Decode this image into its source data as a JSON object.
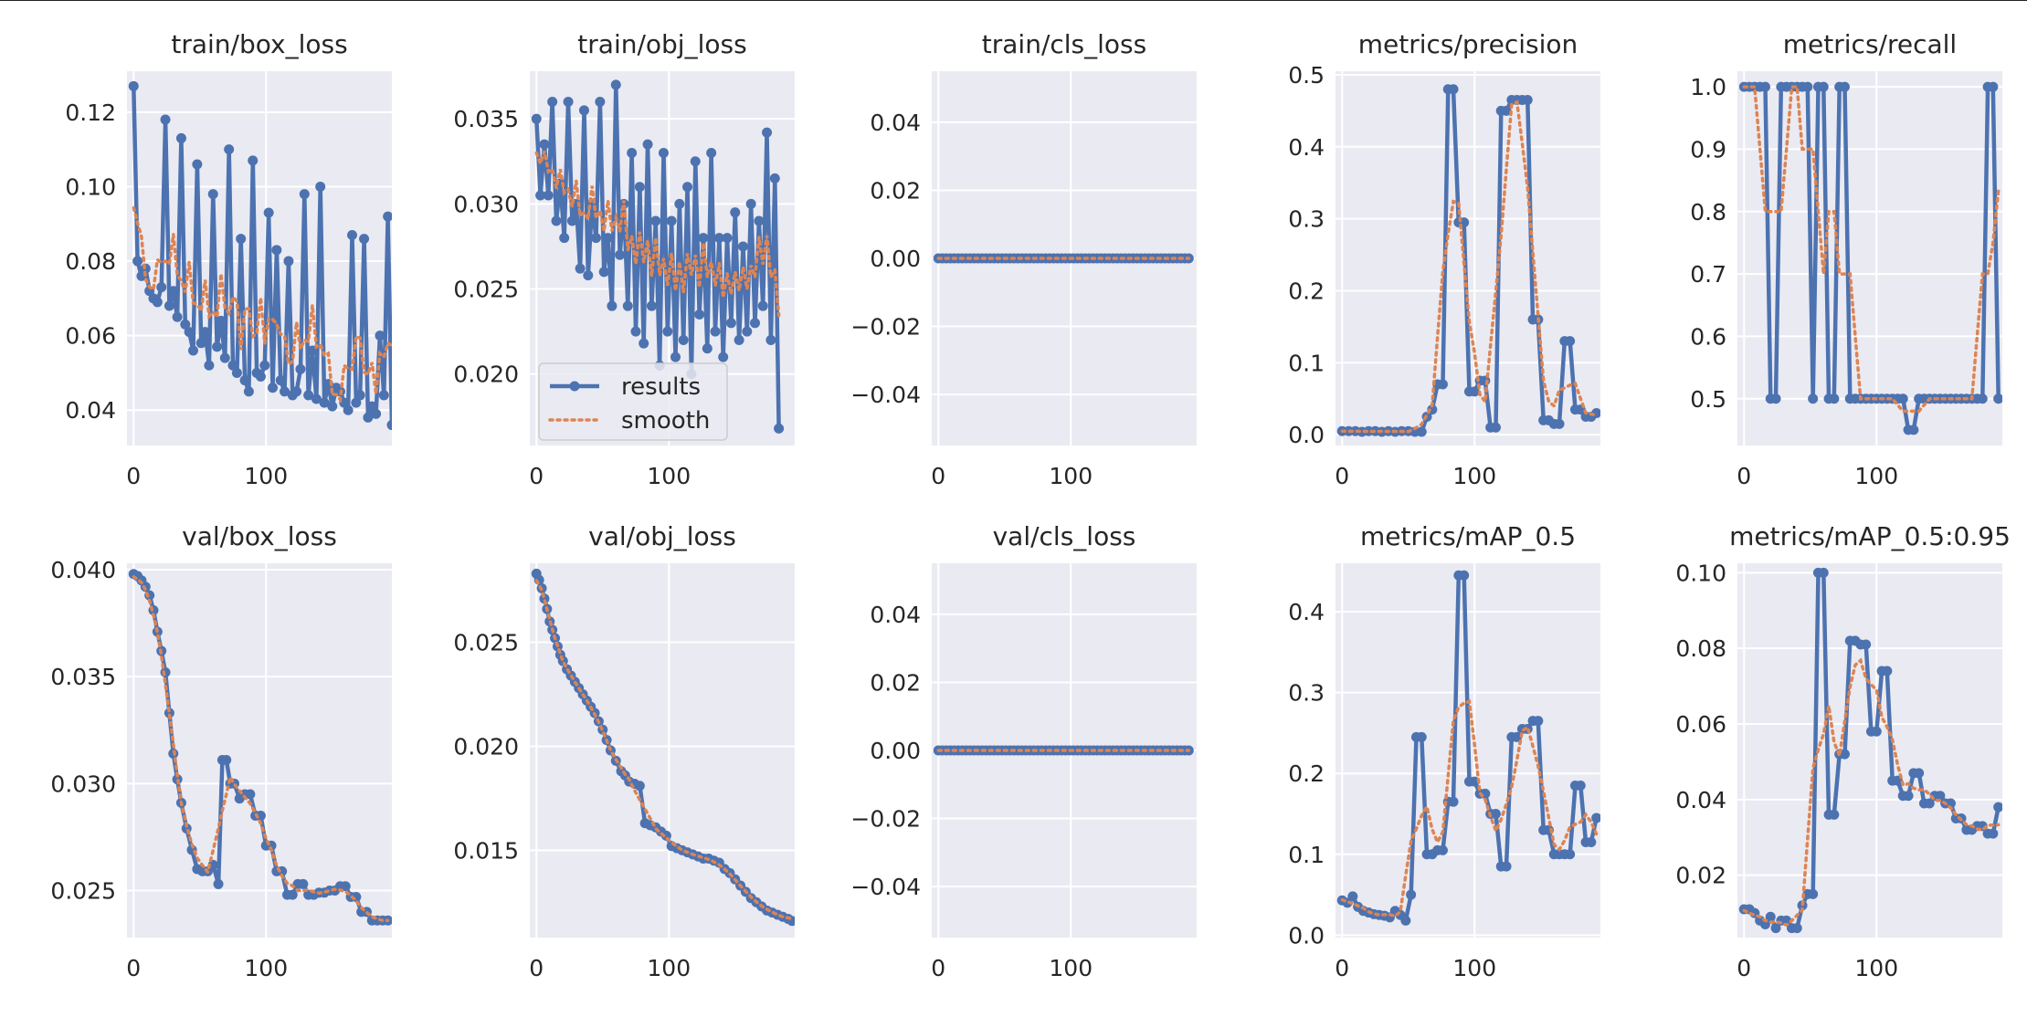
{
  "figure": {
    "legend": {
      "results_label": "results",
      "smooth_label": "smooth",
      "placement": "lower-right of train/obj_loss"
    }
  },
  "colors": {
    "background": "#eaeaf2",
    "grid": "#ffffff",
    "results": "#4c72b0",
    "smooth": "#dd8452",
    "text": "#262626"
  },
  "chart_data": [
    {
      "type": "line",
      "title": "train/box_loss",
      "xlim": [
        -5,
        195
      ],
      "ylim": [
        0.0305,
        0.131
      ],
      "xticks": [
        0,
        100
      ],
      "yticks": [
        0.04,
        0.06,
        0.08,
        0.1,
        0.12
      ],
      "ytick_labels": [
        "0.04",
        "0.06",
        "0.08",
        "0.10",
        "0.12"
      ],
      "legend": false,
      "series": [
        {
          "name": "results",
          "x_start": 0,
          "x_step": 3,
          "values": [
            0.127,
            0.08,
            0.076,
            0.078,
            0.072,
            0.07,
            0.069,
            0.073,
            0.118,
            0.068,
            0.072,
            0.065,
            0.113,
            0.063,
            0.061,
            0.056,
            0.106,
            0.058,
            0.061,
            0.052,
            0.098,
            0.057,
            0.064,
            0.054,
            0.11,
            0.052,
            0.05,
            0.086,
            0.048,
            0.045,
            0.107,
            0.05,
            0.049,
            0.052,
            0.093,
            0.046,
            0.083,
            0.048,
            0.045,
            0.08,
            0.044,
            0.045,
            0.051,
            0.098,
            0.044,
            0.056,
            0.043,
            0.1,
            0.042,
            0.047,
            0.041,
            0.046,
            0.045,
            0.042,
            0.04,
            0.087,
            0.042,
            0.044,
            0.086,
            0.038,
            0.041,
            0.039,
            0.06,
            0.044,
            0.092,
            0.036
          ]
        }
      ]
    },
    {
      "type": "line",
      "title": "train/obj_loss",
      "xlim": [
        -5,
        195
      ],
      "ylim": [
        0.0158,
        0.0378
      ],
      "xticks": [
        0,
        100
      ],
      "yticks": [
        0.02,
        0.025,
        0.03,
        0.035
      ],
      "ytick_labels": [
        "0.020",
        "0.025",
        "0.030",
        "0.035"
      ],
      "legend": true,
      "series": [
        {
          "name": "results",
          "x_start": 0,
          "x_step": 3,
          "values": [
            0.035,
            0.0305,
            0.0335,
            0.0305,
            0.036,
            0.029,
            0.0312,
            0.028,
            0.036,
            0.029,
            0.03,
            0.0262,
            0.0355,
            0.0258,
            0.03,
            0.028,
            0.036,
            0.026,
            0.028,
            0.024,
            0.037,
            0.027,
            0.03,
            0.024,
            0.033,
            0.0225,
            0.031,
            0.0218,
            0.0335,
            0.024,
            0.029,
            0.0205,
            0.033,
            0.0225,
            0.029,
            0.021,
            0.03,
            0.022,
            0.031,
            0.02,
            0.0325,
            0.0235,
            0.028,
            0.0215,
            0.033,
            0.0225,
            0.028,
            0.021,
            0.028,
            0.023,
            0.0295,
            0.022,
            0.0275,
            0.0225,
            0.03,
            0.023,
            0.029,
            0.024,
            0.0342,
            0.022,
            0.0315,
            0.0168
          ]
        }
      ]
    },
    {
      "type": "line",
      "title": "train/cls_loss",
      "xlim": [
        -5,
        195
      ],
      "ylim": [
        -0.055,
        0.055
      ],
      "xticks": [
        0,
        100
      ],
      "yticks": [
        -0.04,
        -0.02,
        0.0,
        0.02,
        0.04
      ],
      "ytick_labels": [
        "−0.04",
        "−0.02",
        "0.00",
        "0.02",
        "0.04"
      ],
      "legend": false,
      "series": [
        {
          "name": "results",
          "constant": 0.0,
          "count": 64,
          "x_start": 0,
          "x_step": 3
        }
      ]
    },
    {
      "type": "line",
      "title": "metrics/precision",
      "xlim": [
        -5,
        195
      ],
      "ylim": [
        -0.015,
        0.505
      ],
      "xticks": [
        0,
        100
      ],
      "yticks": [
        0.0,
        0.1,
        0.2,
        0.3,
        0.4,
        0.5
      ],
      "ytick_labels": [
        "0.0",
        "0.1",
        "0.2",
        "0.3",
        "0.4",
        "0.5"
      ],
      "legend": false,
      "series": [
        {
          "name": "results",
          "x": [
            0,
            5,
            10,
            15,
            20,
            25,
            30,
            35,
            40,
            45,
            50,
            55,
            60,
            64,
            68,
            72,
            76,
            80,
            84,
            88,
            92,
            96,
            100,
            104,
            108,
            112,
            116,
            120,
            124,
            128,
            132,
            136,
            140,
            144,
            148,
            152,
            156,
            160,
            164,
            168,
            172,
            176,
            180,
            184,
            188,
            192
          ],
          "values": [
            0.005,
            0.005,
            0.005,
            0.004,
            0.005,
            0.005,
            0.004,
            0.005,
            0.004,
            0.005,
            0.005,
            0.004,
            0.004,
            0.025,
            0.035,
            0.07,
            0.07,
            0.48,
            0.48,
            0.295,
            0.295,
            0.06,
            0.06,
            0.075,
            0.075,
            0.01,
            0.01,
            0.45,
            0.45,
            0.465,
            0.465,
            0.465,
            0.465,
            0.16,
            0.16,
            0.02,
            0.02,
            0.015,
            0.015,
            0.13,
            0.13,
            0.035,
            0.035,
            0.025,
            0.025,
            0.03
          ]
        }
      ]
    },
    {
      "type": "line",
      "title": "metrics/recall",
      "xlim": [
        -5,
        195
      ],
      "ylim": [
        0.425,
        1.025
      ],
      "xticks": [
        0,
        100
      ],
      "yticks": [
        0.5,
        0.6,
        0.7,
        0.8,
        0.9,
        1.0
      ],
      "ytick_labels": [
        "0.5",
        "0.6",
        "0.7",
        "0.8",
        "0.9",
        "1.0"
      ],
      "legend": false,
      "series": [
        {
          "name": "results",
          "x": [
            0,
            4,
            8,
            12,
            16,
            20,
            24,
            28,
            32,
            36,
            40,
            44,
            48,
            52,
            56,
            60,
            64,
            68,
            72,
            76,
            80,
            84,
            88,
            92,
            96,
            100,
            104,
            108,
            112,
            116,
            120,
            124,
            128,
            132,
            136,
            140,
            144,
            148,
            152,
            156,
            160,
            164,
            168,
            172,
            176,
            180,
            184,
            188,
            192
          ],
          "values": [
            1.0,
            1.0,
            1.0,
            1.0,
            1.0,
            0.5,
            0.5,
            1.0,
            1.0,
            1.0,
            1.0,
            1.0,
            1.0,
            0.5,
            1.0,
            1.0,
            0.5,
            0.5,
            1.0,
            1.0,
            0.5,
            0.5,
            0.5,
            0.5,
            0.5,
            0.5,
            0.5,
            0.5,
            0.5,
            0.5,
            0.5,
            0.45,
            0.45,
            0.5,
            0.5,
            0.5,
            0.5,
            0.5,
            0.5,
            0.5,
            0.5,
            0.5,
            0.5,
            0.5,
            0.5,
            0.5,
            1.0,
            1.0,
            0.5
          ]
        }
      ]
    },
    {
      "type": "line",
      "title": "val/box_loss",
      "xlim": [
        -5,
        195
      ],
      "ylim": [
        0.0228,
        0.0403
      ],
      "xticks": [
        0,
        100
      ],
      "yticks": [
        0.025,
        0.03,
        0.035,
        0.04
      ],
      "ytick_labels": [
        "0.025",
        "0.030",
        "0.035",
        "0.040"
      ],
      "legend": false,
      "series": [
        {
          "name": "results",
          "x": [
            0,
            3,
            6,
            9,
            12,
            15,
            18,
            21,
            24,
            27,
            30,
            33,
            36,
            40,
            44,
            48,
            52,
            56,
            60,
            64,
            67,
            70,
            73,
            76,
            80,
            84,
            88,
            92,
            96,
            100,
            104,
            108,
            112,
            116,
            120,
            124,
            128,
            132,
            136,
            140,
            144,
            148,
            152,
            156,
            160,
            164,
            168,
            172,
            176,
            180,
            184,
            188,
            192
          ],
          "values": [
            0.0398,
            0.0397,
            0.0395,
            0.0392,
            0.0388,
            0.0381,
            0.0371,
            0.0362,
            0.0352,
            0.0333,
            0.0314,
            0.0302,
            0.0291,
            0.0279,
            0.0269,
            0.026,
            0.0259,
            0.0259,
            0.0262,
            0.0253,
            0.0311,
            0.0311,
            0.03,
            0.03,
            0.0293,
            0.0295,
            0.0295,
            0.0285,
            0.0285,
            0.0271,
            0.0271,
            0.0259,
            0.0259,
            0.0248,
            0.0248,
            0.0253,
            0.0253,
            0.0248,
            0.0248,
            0.0249,
            0.0249,
            0.025,
            0.025,
            0.0252,
            0.0252,
            0.0247,
            0.0247,
            0.024,
            0.024,
            0.0236,
            0.0236,
            0.0236,
            0.0236
          ]
        }
      ]
    },
    {
      "type": "line",
      "title": "val/obj_loss",
      "xlim": [
        -5,
        195
      ],
      "ylim": [
        0.0108,
        0.0288
      ],
      "xticks": [
        0,
        100
      ],
      "yticks": [
        0.015,
        0.02,
        0.025
      ],
      "ytick_labels": [
        "0.015",
        "0.020",
        "0.025"
      ],
      "legend": false,
      "series": [
        {
          "name": "results",
          "x": [
            0,
            2,
            4,
            6,
            8,
            10,
            12,
            14,
            16,
            18,
            20,
            23,
            26,
            29,
            32,
            35,
            38,
            41,
            44,
            47,
            50,
            53,
            56,
            60,
            64,
            67,
            70,
            74,
            78,
            82,
            86,
            90,
            94,
            98,
            102,
            106,
            110,
            114,
            118,
            122,
            126,
            130,
            134,
            138,
            142,
            146,
            150,
            154,
            158,
            162,
            166,
            170,
            174,
            178,
            182,
            186,
            190,
            193
          ],
          "values": [
            0.0283,
            0.028,
            0.0276,
            0.0271,
            0.0266,
            0.026,
            0.0256,
            0.0252,
            0.0248,
            0.0244,
            0.0241,
            0.0237,
            0.0234,
            0.0231,
            0.0228,
            0.0225,
            0.0222,
            0.0219,
            0.0216,
            0.0212,
            0.0208,
            0.0203,
            0.0198,
            0.0193,
            0.0188,
            0.0186,
            0.0183,
            0.0182,
            0.0181,
            0.0163,
            0.0162,
            0.0161,
            0.0159,
            0.0157,
            0.0152,
            0.0151,
            0.015,
            0.0149,
            0.0148,
            0.0147,
            0.0146,
            0.0146,
            0.0145,
            0.0144,
            0.0141,
            0.0139,
            0.0136,
            0.0133,
            0.013,
            0.0127,
            0.0125,
            0.0123,
            0.0121,
            0.012,
            0.0119,
            0.0118,
            0.0117,
            0.0116
          ]
        }
      ]
    },
    {
      "type": "line",
      "title": "val/cls_loss",
      "xlim": [
        -5,
        195
      ],
      "ylim": [
        -0.055,
        0.055
      ],
      "xticks": [
        0,
        100
      ],
      "yticks": [
        -0.04,
        -0.02,
        0.0,
        0.02,
        0.04
      ],
      "ytick_labels": [
        "−0.04",
        "−0.02",
        "0.00",
        "0.02",
        "0.04"
      ],
      "legend": false,
      "series": [
        {
          "name": "results",
          "constant": 0.0,
          "count": 64,
          "x_start": 0,
          "x_step": 3
        }
      ]
    },
    {
      "type": "line",
      "title": "metrics/mAP_0.5",
      "xlim": [
        -5,
        195
      ],
      "ylim": [
        -0.003,
        0.46
      ],
      "xticks": [
        0,
        100
      ],
      "yticks": [
        0.0,
        0.1,
        0.2,
        0.3,
        0.4
      ],
      "ytick_labels": [
        "0.0",
        "0.1",
        "0.2",
        "0.3",
        "0.4"
      ],
      "legend": false,
      "series": [
        {
          "name": "results",
          "x": [
            0,
            4,
            8,
            12,
            16,
            20,
            24,
            28,
            32,
            36,
            40,
            44,
            48,
            52,
            56,
            60,
            64,
            68,
            72,
            76,
            80,
            84,
            88,
            92,
            96,
            100,
            104,
            108,
            112,
            116,
            120,
            124,
            128,
            132,
            136,
            140,
            144,
            148,
            152,
            156,
            160,
            164,
            168,
            172,
            176,
            180,
            184,
            188,
            192
          ],
          "values": [
            0.043,
            0.04,
            0.048,
            0.035,
            0.03,
            0.028,
            0.026,
            0.025,
            0.024,
            0.022,
            0.03,
            0.025,
            0.018,
            0.05,
            0.245,
            0.245,
            0.1,
            0.1,
            0.105,
            0.105,
            0.165,
            0.165,
            0.445,
            0.445,
            0.19,
            0.19,
            0.175,
            0.175,
            0.15,
            0.15,
            0.085,
            0.085,
            0.245,
            0.245,
            0.255,
            0.255,
            0.265,
            0.265,
            0.13,
            0.13,
            0.1,
            0.1,
            0.1,
            0.1,
            0.185,
            0.185,
            0.115,
            0.115,
            0.145
          ]
        }
      ]
    },
    {
      "type": "line",
      "title": "metrics/mAP_0.5:0.95",
      "xlim": [
        -5,
        195
      ],
      "ylim": [
        0.0035,
        0.1025
      ],
      "xticks": [
        0,
        100
      ],
      "yticks": [
        0.02,
        0.04,
        0.06,
        0.08,
        0.1
      ],
      "ytick_labels": [
        "0.02",
        "0.04",
        "0.06",
        "0.08",
        "0.10"
      ],
      "legend": false,
      "series": [
        {
          "name": "results",
          "x": [
            0,
            4,
            8,
            12,
            16,
            20,
            24,
            28,
            32,
            36,
            40,
            44,
            48,
            52,
            56,
            60,
            64,
            68,
            72,
            76,
            80,
            84,
            88,
            92,
            96,
            100,
            104,
            108,
            112,
            116,
            120,
            124,
            128,
            132,
            136,
            140,
            144,
            148,
            152,
            156,
            160,
            164,
            168,
            172,
            176,
            180,
            184,
            188,
            192
          ],
          "values": [
            0.011,
            0.011,
            0.01,
            0.008,
            0.007,
            0.009,
            0.006,
            0.008,
            0.008,
            0.006,
            0.006,
            0.012,
            0.015,
            0.015,
            0.1,
            0.1,
            0.036,
            0.036,
            0.052,
            0.052,
            0.082,
            0.082,
            0.081,
            0.081,
            0.058,
            0.058,
            0.074,
            0.074,
            0.045,
            0.045,
            0.041,
            0.041,
            0.047,
            0.047,
            0.039,
            0.039,
            0.041,
            0.041,
            0.039,
            0.039,
            0.035,
            0.035,
            0.032,
            0.032,
            0.033,
            0.033,
            0.031,
            0.031,
            0.038
          ]
        }
      ]
    }
  ]
}
